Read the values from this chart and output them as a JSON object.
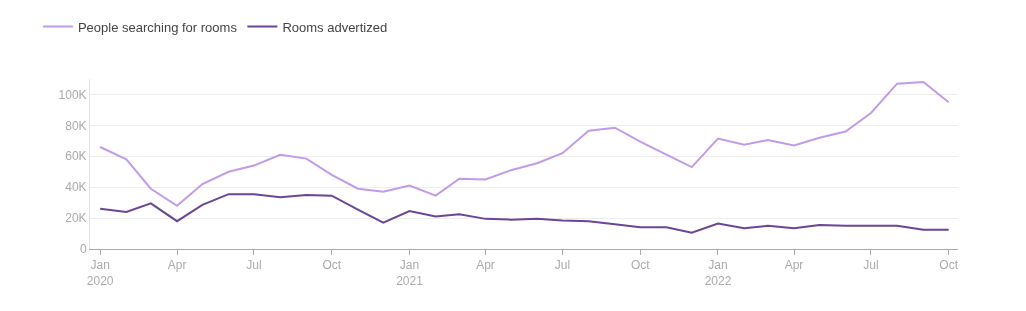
{
  "chart_data": {
    "type": "line",
    "x": [
      "2020-01",
      "2020-02",
      "2020-03",
      "2020-04",
      "2020-05",
      "2020-06",
      "2020-07",
      "2020-08",
      "2020-09",
      "2020-10",
      "2020-11",
      "2020-12",
      "2021-01",
      "2021-02",
      "2021-03",
      "2021-04",
      "2021-05",
      "2021-06",
      "2021-07",
      "2021-08",
      "2021-09",
      "2021-10",
      "2021-11",
      "2021-12",
      "2022-01",
      "2022-02",
      "2022-03",
      "2022-04",
      "2022-05",
      "2022-06",
      "2022-07",
      "2022-08",
      "2022-09",
      "2022-10"
    ],
    "series": [
      {
        "name": "People searching for rooms",
        "color": "#c29be8",
        "values": [
          66000,
          58000,
          39000,
          28000,
          42000,
          50000,
          54000,
          61000,
          58500,
          48000,
          39000,
          37000,
          41000,
          34500,
          45500,
          45000,
          51000,
          55500,
          62000,
          76500,
          78500,
          69500,
          61000,
          53000,
          71500,
          67500,
          70500,
          67000,
          72000,
          76000,
          88000,
          107000,
          108000,
          95000
        ]
      },
      {
        "name": "Rooms advertized",
        "color": "#6b4596",
        "values": [
          26000,
          24000,
          29500,
          18000,
          28500,
          35500,
          35500,
          33500,
          35000,
          34500,
          25500,
          17000,
          24500,
          21000,
          22500,
          19500,
          19000,
          19500,
          18500,
          18000,
          16000,
          14000,
          14000,
          10500,
          16500,
          13500,
          15000,
          13500,
          15500,
          15000,
          15000,
          15000,
          12500,
          12500
        ]
      }
    ],
    "xlim": [
      "2019-12-20",
      "2022-10-12"
    ],
    "xticks": [
      {
        "value": "2020-01",
        "label": "Jan\n2020"
      },
      {
        "value": "2020-04",
        "label": "Apr"
      },
      {
        "value": "2020-07",
        "label": "Jul"
      },
      {
        "value": "2020-10",
        "label": "Oct"
      },
      {
        "value": "2021-01",
        "label": "Jan\n2021"
      },
      {
        "value": "2021-04",
        "label": "Apr"
      },
      {
        "value": "2021-07",
        "label": "Jul"
      },
      {
        "value": "2021-10",
        "label": "Oct"
      },
      {
        "value": "2022-01",
        "label": "Jan\n2022"
      },
      {
        "value": "2022-04",
        "label": "Apr"
      },
      {
        "value": "2022-07",
        "label": "Jul"
      },
      {
        "value": "2022-10",
        "label": "Oct"
      }
    ],
    "ylim": [
      0,
      110000
    ],
    "yticks": [
      0,
      {
        "value": 20000,
        "label": "20K"
      },
      {
        "value": 40000,
        "label": "40K"
      },
      {
        "value": 60000,
        "label": "60K"
      },
      {
        "value": 80000,
        "label": "80K"
      },
      {
        "value": 100000,
        "label": "100K"
      }
    ],
    "grid": "y",
    "legend": "top left",
    "marker": "none",
    "line_style": "solid"
  }
}
